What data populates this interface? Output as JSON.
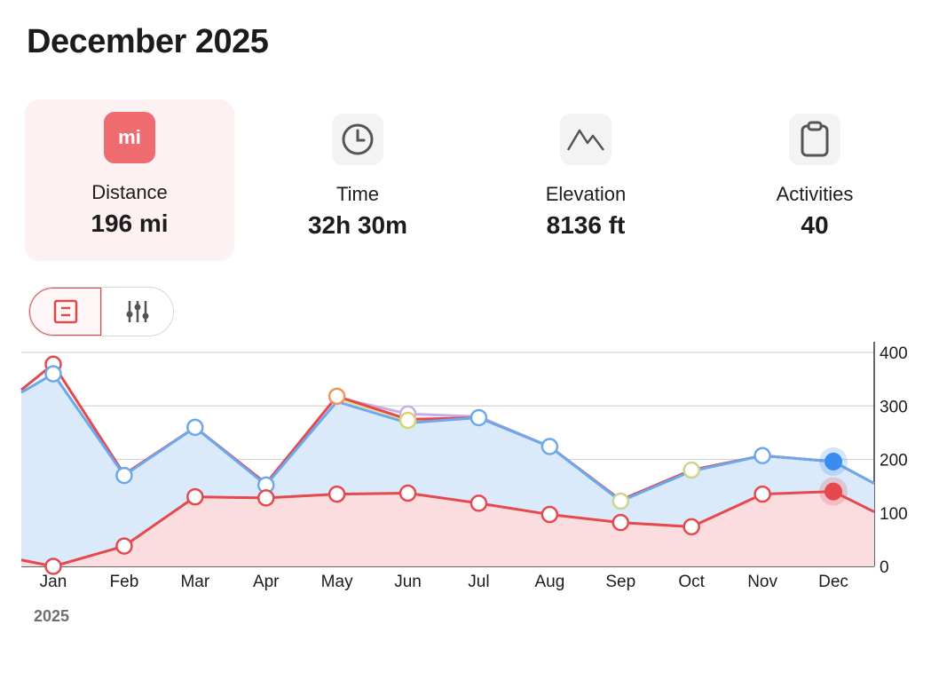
{
  "header": {
    "title": "December 2025"
  },
  "stats": [
    {
      "icon": "mi-badge-icon",
      "icon_text": "mi",
      "label": "Distance",
      "value": "196 mi",
      "active": true
    },
    {
      "icon": "clock-icon",
      "label": "Time",
      "value": "32h 30m",
      "active": false
    },
    {
      "icon": "mountain-icon",
      "label": "Elevation",
      "value": "8136 ft",
      "active": false
    },
    {
      "icon": "clipboard-icon",
      "label": "Activities",
      "value": "40",
      "active": false
    }
  ],
  "view_toggle": {
    "options": [
      "summary-icon",
      "sliders-icon"
    ],
    "selected": 0
  },
  "colors": {
    "accent": "#ee6b70",
    "blue": "#6aa9ee",
    "red": "#e5484d",
    "orange": "#f0955a",
    "purple": "#c8aee6",
    "yellow": "#e8e089",
    "green": "#b9dca8",
    "blue_fill": "#dbeafa",
    "red_fill": "#fbdde0"
  },
  "chart_data": {
    "type": "line",
    "categories": [
      "Jan",
      "Feb",
      "Mar",
      "Apr",
      "May",
      "Jun",
      "Jul",
      "Aug",
      "Sep",
      "Oct",
      "Nov",
      "Dec"
    ],
    "ylim": [
      0,
      400
    ],
    "yticks": [
      0,
      100,
      200,
      300,
      400
    ],
    "grid": true,
    "xlabel": "2025",
    "ylabel": "",
    "series": [
      {
        "role": "total",
        "color": "#6aa9ee",
        "values": [
          360,
          170,
          260,
          152,
          308,
          268,
          278,
          224,
          122,
          178,
          207,
          196
        ],
        "fill": true
      },
      {
        "role": "orange",
        "color": "#f0955a",
        "values": [
          378,
          172,
          260,
          155,
          318,
          275,
          278,
          224,
          124,
          180,
          207,
          196
        ],
        "fill": false
      },
      {
        "role": "purple",
        "color": "#c8aee6",
        "values": [
          null,
          null,
          null,
          null,
          316,
          285,
          280,
          224,
          124,
          180,
          207,
          196
        ],
        "fill": false
      },
      {
        "role": "yellow",
        "color": "#e8e089",
        "values": [
          null,
          null,
          null,
          null,
          314,
          273,
          278,
          224,
          124,
          180,
          207,
          196
        ],
        "fill": false
      },
      {
        "role": "current",
        "color": "#e5484d",
        "values": [
          0,
          38,
          130,
          128,
          135,
          137,
          118,
          97,
          82,
          74,
          135,
          140
        ],
        "fill": true
      }
    ],
    "edge": {
      "left_total": 325,
      "left_current": 12,
      "right_total": 155,
      "right_current": 102
    },
    "highlight_index": 11
  }
}
